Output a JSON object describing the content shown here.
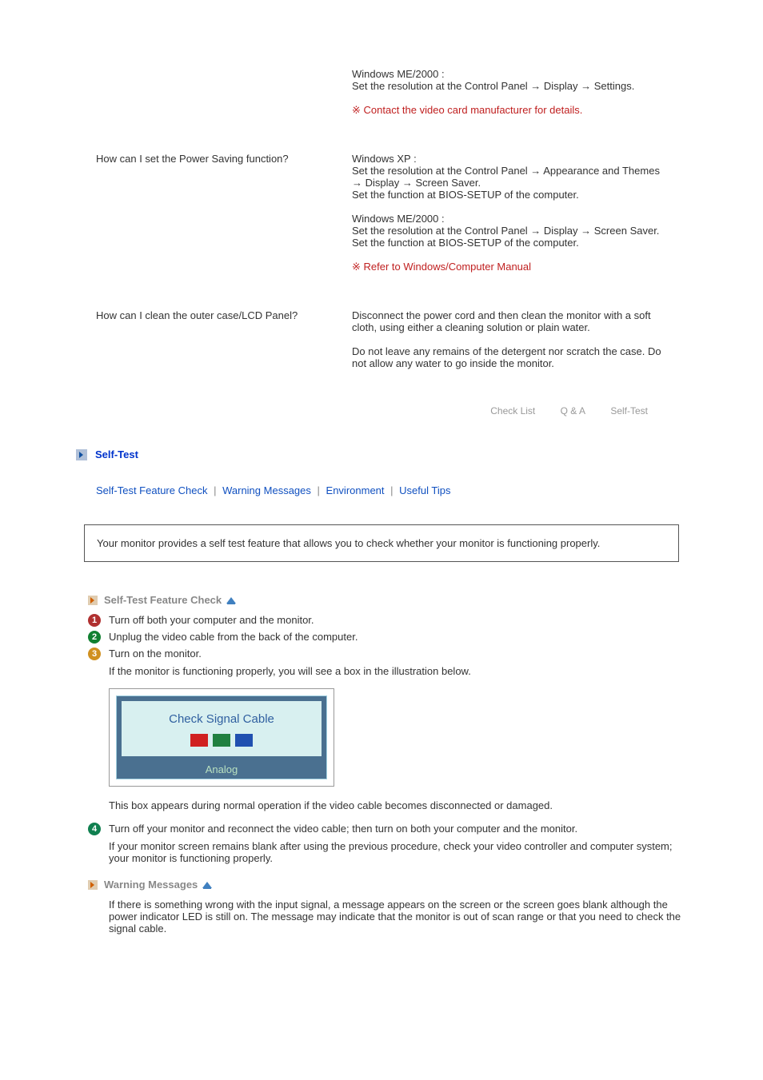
{
  "qa": {
    "r1": {
      "q": "",
      "a1": "Windows ME/2000 :\nSet the resolution at the Control Panel → Display → Settings.",
      "note": "※ Contact the video card manufacturer for details."
    },
    "r2": {
      "q": "How can I set the Power Saving function?",
      "a1": "Windows XP :\nSet the resolution at the Control Panel → Appearance and Themes → Display → Screen Saver.\nSet the function at BIOS-SETUP of the computer.",
      "a2": "Windows ME/2000 :\nSet the resolution at the Control Panel → Display → Screen Saver.\nSet the function at BIOS-SETUP of the computer.",
      "note": "※ Refer to Windows/Computer Manual"
    },
    "r3": {
      "q": "How can I clean the outer case/LCD Panel?",
      "a1": "Disconnect the power cord and then clean the monitor with a soft cloth, using either a cleaning solution or plain water.",
      "a2": "Do not leave any remains of the detergent nor scratch the case. Do not allow any water to go inside the monitor."
    }
  },
  "nav": {
    "checklist": "Check List",
    "qa": "Q & A",
    "selftest": "Self-Test"
  },
  "section": {
    "title": "Self-Test",
    "links": {
      "feature": "Self-Test Feature Check",
      "warning": "Warning Messages",
      "env": "Environment",
      "tips": "Useful Tips",
      "sep": "|"
    }
  },
  "infobox": "Your monitor provides a self test feature that allows you to check whether your monitor is functioning properly.",
  "sub1": {
    "title": "Self-Test Feature Check",
    "step1": "Turn off both your computer and the monitor.",
    "step2": "Unplug the video cable from the back of the computer.",
    "step3": "Turn on the monitor.",
    "desc3": "If the monitor is functioning properly, you will see a box in the illustration below.",
    "signal_label": "Check Signal Cable",
    "signal_bottom": "Analog",
    "desc_after": "This box appears during normal operation if the video cable becomes disconnected or damaged.",
    "step4": "Turn off your monitor and reconnect the video cable; then turn on both your computer and the monitor.",
    "desc4": "If your monitor screen remains blank after using the previous procedure, check your video controller and computer system; your monitor is functioning properly."
  },
  "sub2": {
    "title": "Warning Messages",
    "desc": "If there is something wrong with the input signal, a message appears on the screen or the screen goes blank although the power indicator LED is still on. The message may indicate that the monitor is out of scan range or that you need to check the signal cable."
  },
  "signal_colors": {
    "red": "#d02020",
    "green": "#208040",
    "blue": "#2050b0"
  }
}
